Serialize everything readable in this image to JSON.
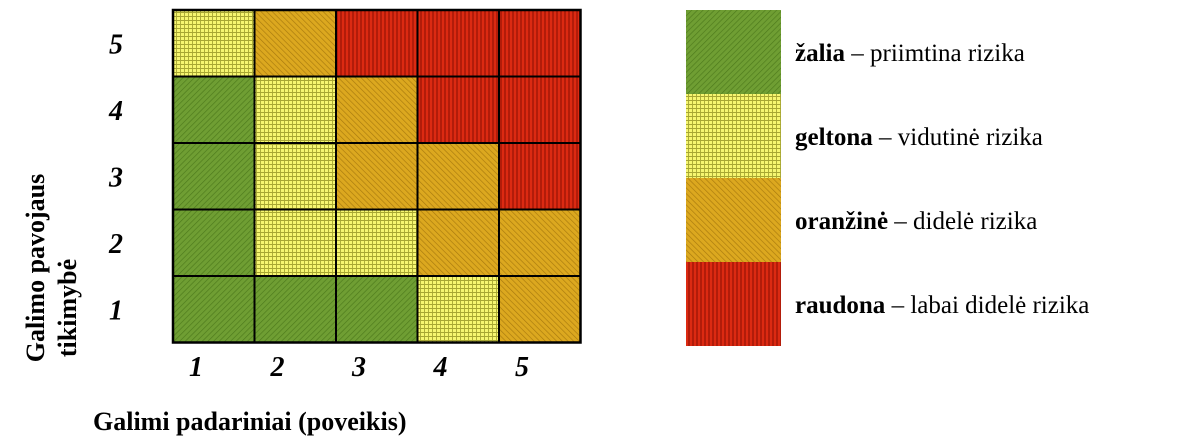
{
  "chart_data": {
    "type": "heatmap",
    "title": "",
    "xlabel": "Galimi padariniai (poveikis)",
    "ylabel_lines": [
      "Galimo pavojaus",
      "tikimybė"
    ],
    "x_categories": [
      "1",
      "2",
      "3",
      "4",
      "5"
    ],
    "y_categories": [
      "1",
      "2",
      "3",
      "4",
      "5"
    ],
    "cells": [
      [
        "yellow",
        "orange",
        "red",
        "red",
        "red"
      ],
      [
        "green",
        "yellow",
        "orange",
        "red",
        "red"
      ],
      [
        "green",
        "yellow",
        "orange",
        "orange",
        "red"
      ],
      [
        "green",
        "yellow",
        "yellow",
        "orange",
        "orange"
      ],
      [
        "green",
        "green",
        "green",
        "yellow",
        "orange"
      ]
    ],
    "cells_row_order": "top-to-bottom (likelihood 5 to 1), columns impact 1 to 5",
    "colors": {
      "green": "#6a9a2e",
      "yellow": "#f2f25a",
      "orange": "#d8a21c",
      "red": "#d82a14"
    },
    "legend": [
      {
        "key": "green",
        "name": "žalia",
        "desc": " – priimtina rizika"
      },
      {
        "key": "yellow",
        "name": "geltona",
        "desc": " – vidutinė rizika"
      },
      {
        "key": "orange",
        "name": "oranžinė",
        "desc": " – didelė  rizika"
      },
      {
        "key": "red",
        "name": "raudona",
        "desc": " – labai didelė rizika"
      }
    ],
    "legend_position": "right"
  }
}
